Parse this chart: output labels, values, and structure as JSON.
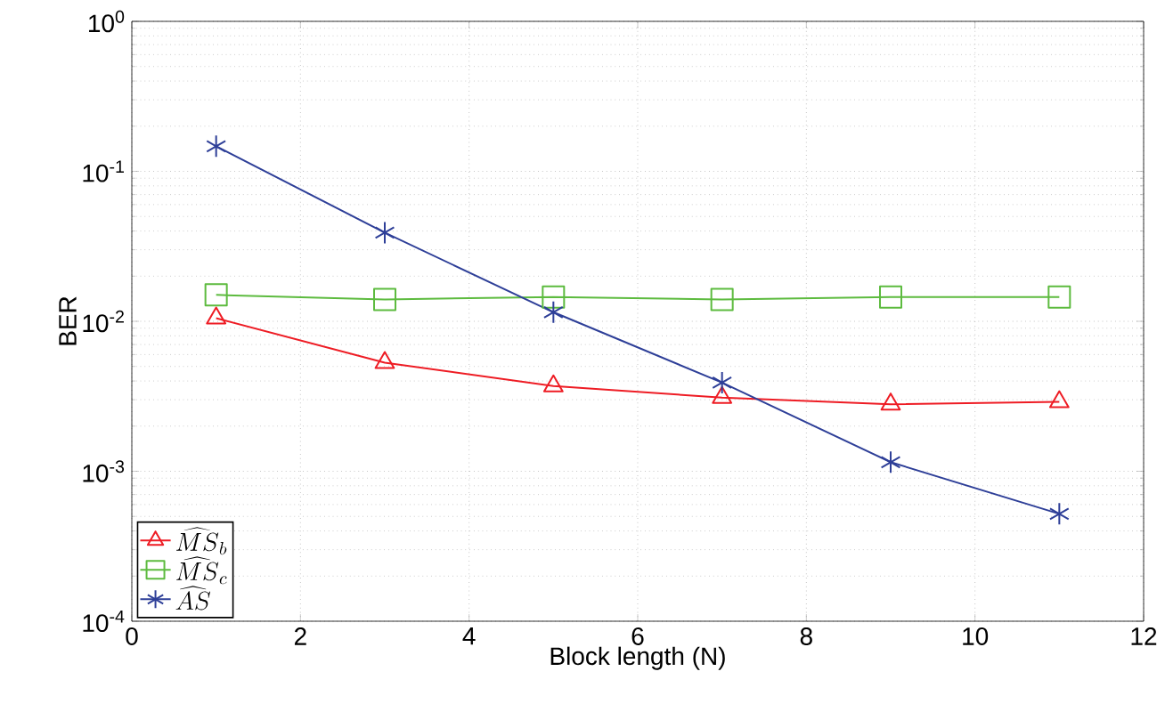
{
  "chart_data": {
    "type": "line",
    "xlabel": "Block length (N)",
    "ylabel": "BER",
    "log": "y",
    "x": [
      1,
      3,
      5,
      7,
      9,
      11
    ],
    "xlim": [
      0,
      12
    ],
    "xticks": [
      0,
      2,
      4,
      6,
      8,
      10,
      12
    ],
    "ylim": [
      0.0001,
      1
    ],
    "yticks": [
      {
        "value": 0.0001,
        "label": "10$^{-4}$"
      },
      {
        "value": 0.001,
        "label": "10$^{-3}$"
      },
      {
        "value": 0.01,
        "label": "10$^{-2}$"
      },
      {
        "value": 0.1,
        "label": "10$^{-1}$"
      },
      {
        "value": 1,
        "label": "10$^{0}$"
      }
    ],
    "grid": true,
    "legend": "bottom left",
    "line_style": "solid",
    "series": [
      {
        "name": "\\widehat{MS}_b",
        "color": "#ee1c24",
        "marker": "triangle",
        "values": [
          0.0105,
          0.0053,
          0.0037,
          0.0031,
          0.0028,
          0.0029
        ]
      },
      {
        "name": "\\widehat{MS}_c",
        "color": "#5dbb3f",
        "marker": "square",
        "values": [
          0.015,
          0.014,
          0.0145,
          0.014,
          0.0145,
          0.0145
        ]
      },
      {
        "name": "\\widehat{AS}",
        "color": "#2e3f98",
        "marker": "cross",
        "values": [
          0.147,
          0.039,
          0.0115,
          0.0039,
          0.00115,
          0.00052
        ]
      }
    ]
  }
}
